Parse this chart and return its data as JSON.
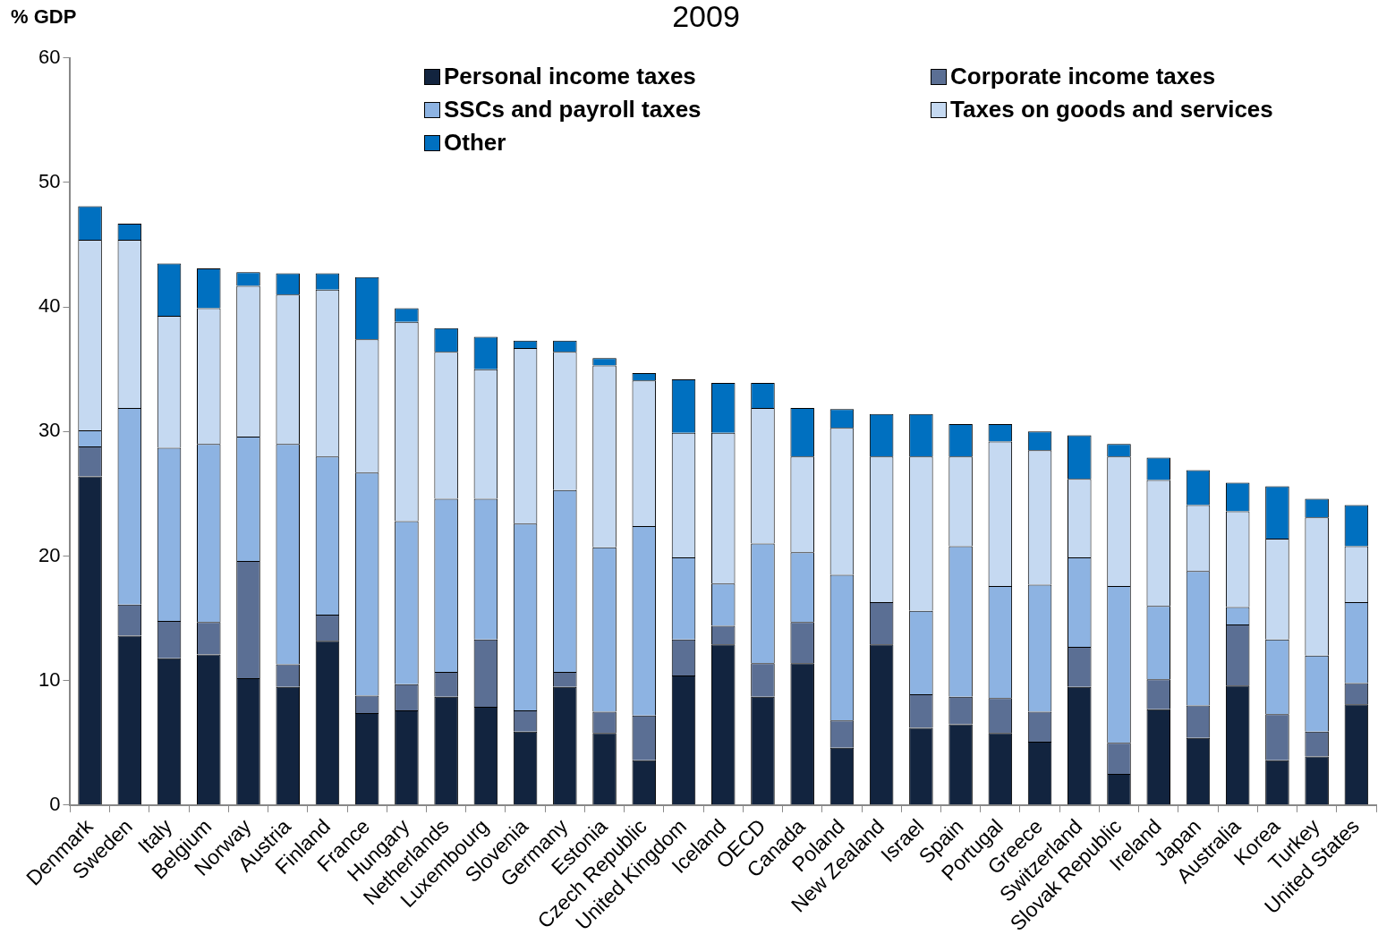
{
  "chart_data": {
    "type": "bar",
    "title": "2009",
    "ylabel": "% GDP",
    "stacked": true,
    "legend": "top right",
    "grid": false,
    "categories": [
      "Denmark",
      "Sweden",
      "Italy",
      "Belgium",
      "Norway",
      "Austria",
      "Finland",
      "France",
      "Hungary",
      "Netherlands",
      "Luxembourg",
      "Slovenia",
      "Germany",
      "Estonia",
      "Czech Republic",
      "United Kingdom",
      "Iceland",
      "OECD",
      "Canada",
      "Poland",
      "New Zealand",
      "Israel",
      "Spain",
      "Portugal",
      "Greece",
      "Switzerland",
      "Slovak Republic",
      "Ireland",
      "Japan",
      "Australia",
      "Korea",
      "Turkey",
      "United States"
    ],
    "ylim": [
      0,
      60
    ],
    "yticks": [
      0,
      10,
      20,
      30,
      40,
      50,
      60
    ],
    "series": [
      {
        "name": "Personal income taxes",
        "color": "#12243f",
        "values": [
          26.4,
          13.6,
          11.8,
          12.1,
          10.2,
          9.5,
          13.2,
          7.4,
          7.6,
          8.7,
          7.9,
          5.9,
          9.5,
          5.8,
          3.6,
          10.4,
          12.9,
          8.7,
          11.4,
          4.6,
          12.9,
          6.2,
          6.5,
          5.8,
          5.1,
          9.5,
          2.5,
          7.7,
          5.4,
          9.6,
          3.6,
          3.9,
          8.1
        ]
      },
      {
        "name": "Corporate income taxes",
        "color": "#5b6f94",
        "values": [
          2.4,
          2.5,
          3.0,
          2.6,
          9.4,
          1.8,
          2.1,
          1.4,
          2.1,
          2.0,
          5.4,
          1.7,
          1.2,
          1.7,
          3.6,
          2.9,
          1.5,
          2.7,
          3.3,
          2.2,
          3.4,
          2.7,
          2.2,
          2.8,
          2.4,
          3.2,
          2.5,
          2.4,
          2.6,
          4.9,
          3.7,
          2.0,
          1.7
        ]
      },
      {
        "name": "SSCs and payroll taxes",
        "color": "#8db3e2",
        "values": [
          1.3,
          15.8,
          13.9,
          14.3,
          10.0,
          17.7,
          12.7,
          17.9,
          13.1,
          13.9,
          11.3,
          15.0,
          14.6,
          13.2,
          15.2,
          6.6,
          3.4,
          9.6,
          5.6,
          11.7,
          0,
          6.7,
          12.1,
          9.0,
          10.2,
          7.2,
          12.6,
          5.9,
          10.8,
          1.4,
          6.0,
          6.1,
          6.5
        ]
      },
      {
        "name": "Taxes on goods and services",
        "color": "#c5d9f1",
        "values": [
          15.3,
          13.5,
          10.6,
          10.9,
          12.1,
          12.0,
          13.4,
          10.7,
          16.0,
          11.8,
          10.4,
          14.1,
          11.1,
          14.6,
          11.7,
          10.0,
          12.1,
          10.9,
          7.7,
          11.8,
          11.7,
          12.4,
          7.2,
          11.6,
          10.8,
          6.3,
          10.4,
          10.1,
          5.3,
          7.7,
          8.1,
          11.1,
          4.5
        ]
      },
      {
        "name": "Other",
        "color": "#0070c0",
        "values": [
          2.7,
          1.3,
          4.2,
          3.2,
          1.1,
          1.7,
          1.3,
          5.0,
          1.1,
          1.9,
          2.6,
          0.6,
          0.9,
          0.6,
          0.6,
          4.3,
          4.0,
          2.0,
          3.9,
          1.5,
          3.4,
          3.4,
          2.6,
          1.4,
          1.5,
          3.5,
          1.0,
          1.8,
          2.8,
          2.3,
          4.2,
          1.5,
          3.3
        ]
      }
    ]
  }
}
